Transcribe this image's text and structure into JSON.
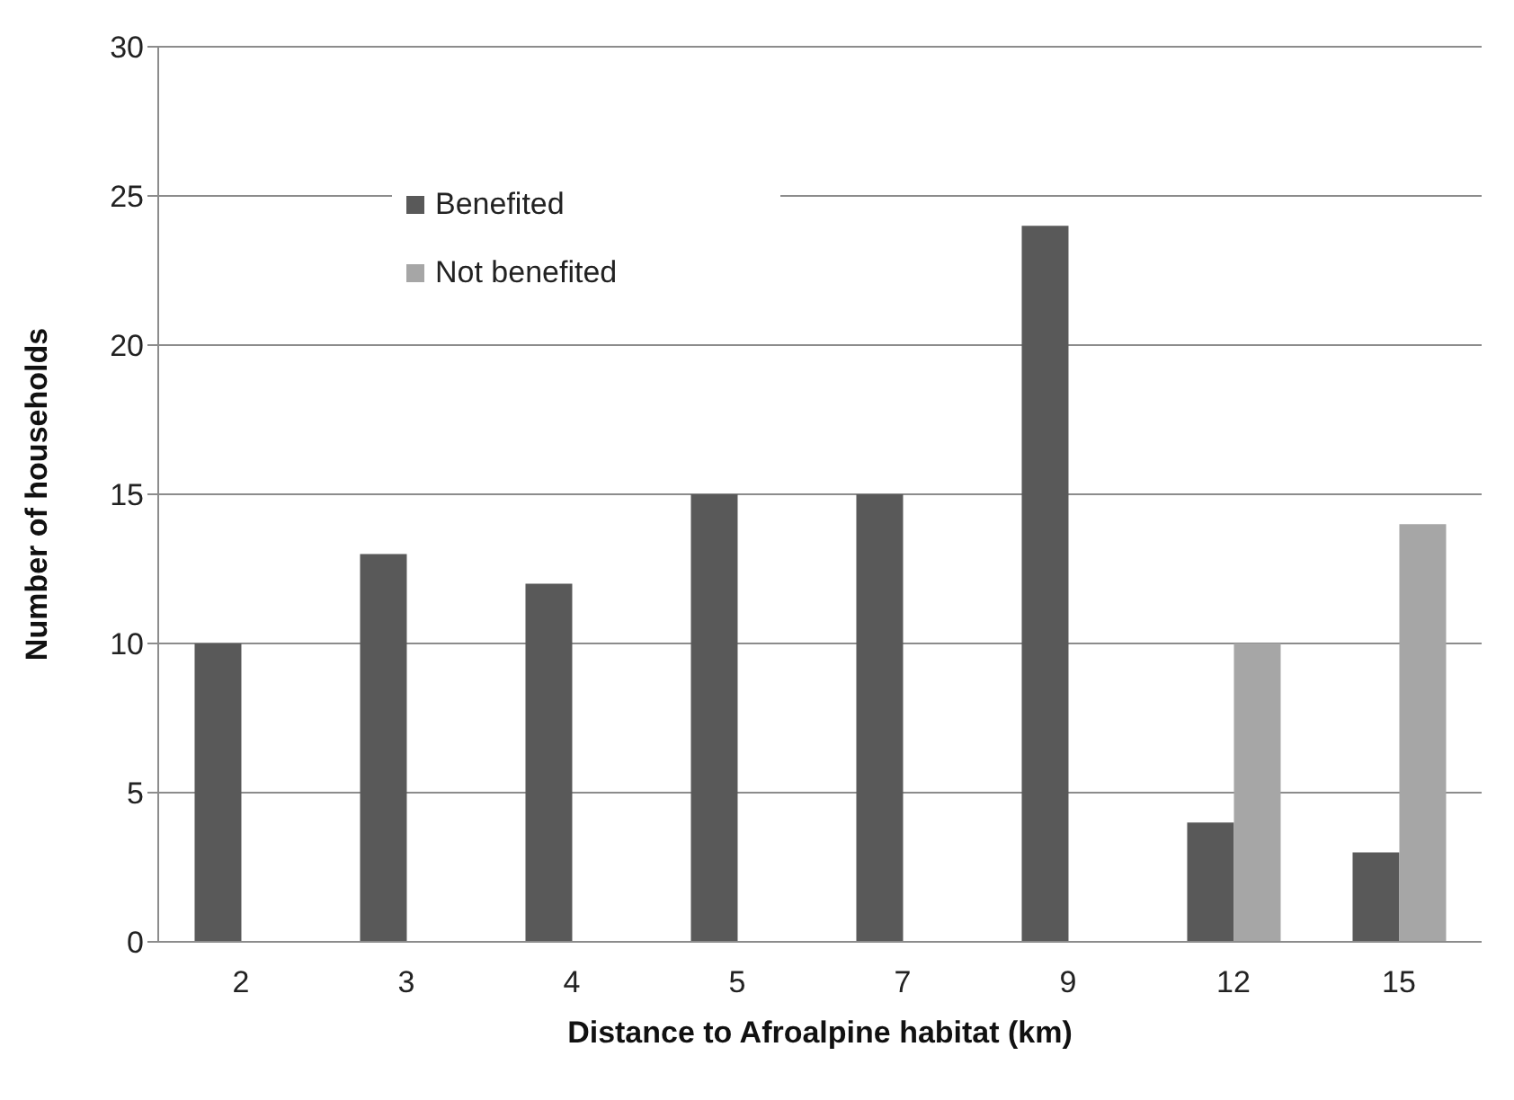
{
  "chart_data": {
    "type": "bar",
    "xlabel": "Distance to Afroalpine habitat (km)",
    "ylabel": "Number of households",
    "categories": [
      "2",
      "3",
      "4",
      "5",
      "7",
      "9",
      "12",
      "15"
    ],
    "series": [
      {
        "name": "Benefited",
        "color": "#595959",
        "values": [
          10,
          13,
          12,
          15,
          15,
          24,
          4,
          3
        ]
      },
      {
        "name": "Not benefited",
        "color": "#a6a6a6",
        "values": [
          null,
          null,
          null,
          null,
          null,
          null,
          10,
          14
        ]
      }
    ],
    "ylim": [
      0,
      30
    ],
    "yticks": [
      0,
      5,
      10,
      15,
      20,
      25,
      30
    ],
    "grid": "y",
    "legend": "top left"
  }
}
